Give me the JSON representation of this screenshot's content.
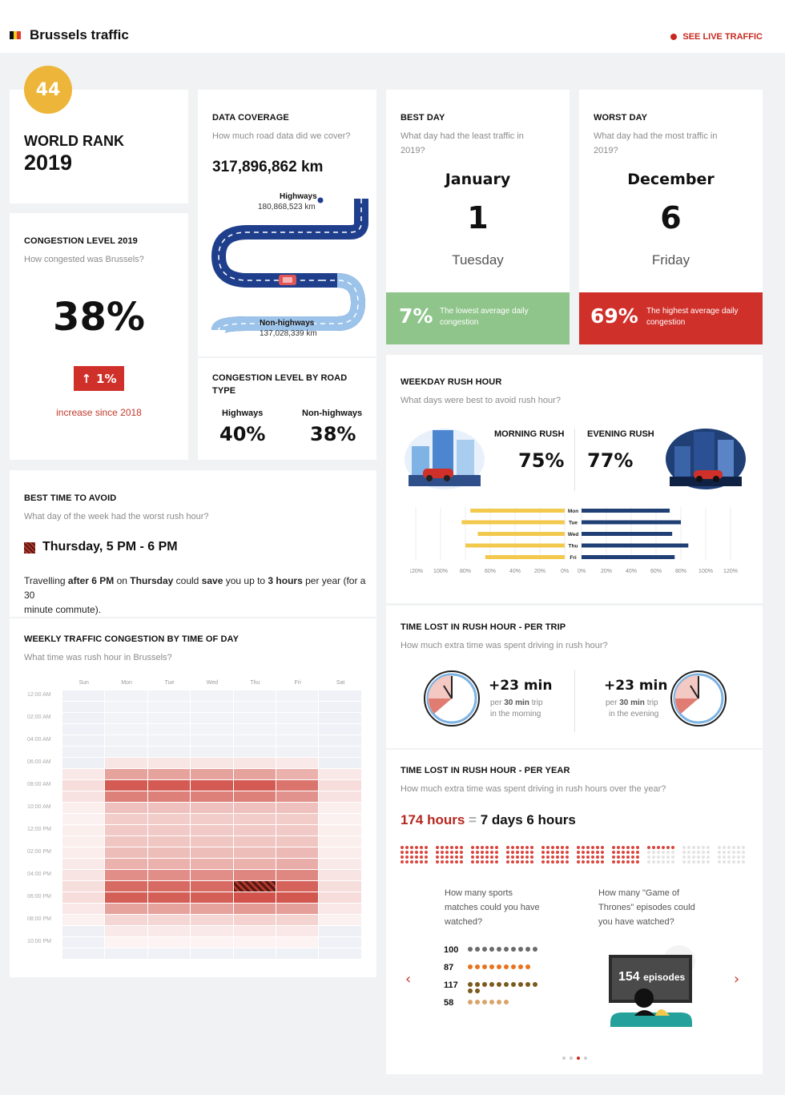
{
  "header": {
    "title": "Brussels traffic",
    "live_link": "SEE LIVE TRAFFIC",
    "flag_colors": [
      "#111111",
      "#f4cc1b",
      "#e23a2d"
    ]
  },
  "world_rank": {
    "rank": "44",
    "label": "WORLD RANK",
    "year": "2019"
  },
  "congestion": {
    "title": "CONGESTION LEVEL 2019",
    "question": "How congested was Brussels?",
    "value": "38%",
    "change": "1%",
    "change_text": "increase since 2018"
  },
  "data_coverage": {
    "title": "DATA COVERAGE",
    "question": "How much road data did we cover?",
    "total": "317,896,862 km",
    "highways_label": "Highways",
    "highways_km": "180,868,523 km",
    "nonhighways_label": "Non-highways",
    "nonhighways_km": "137,028,339 km"
  },
  "road_type": {
    "title_line1": "CONGESTION LEVEL BY ROAD",
    "title_line2": "TYPE",
    "highways_label": "Highways",
    "highways_value": "40%",
    "nonhighways_label": "Non-highways",
    "nonhighways_value": "38%"
  },
  "best_day": {
    "title": "BEST DAY",
    "question_line1": "What day had the least traffic in",
    "question_line2": "2019?",
    "month": "January",
    "day": "1",
    "weekday": "Tuesday",
    "pct": "7%",
    "note_line1": "The lowest average daily",
    "note_line2": "congestion",
    "color": "#8fc58b"
  },
  "worst_day": {
    "title": "WORST DAY",
    "question_line1": "What day had the most traffic in",
    "question_line2": "2019?",
    "month": "December",
    "day": "6",
    "weekday": "Friday",
    "pct": "69%",
    "note_line1": "The highest average daily",
    "note_line2": "congestion",
    "color": "#d0302a"
  },
  "best_time": {
    "title": "BEST TIME TO AVOID",
    "question": "What day of the week had the worst rush hour?",
    "slot": "Thursday, 5 PM - 6 PM",
    "line1_a": "Travelling ",
    "line1_b": "after 6 PM",
    "line1_c": " on ",
    "line1_d": "Thursday",
    "line1_e": " could ",
    "line1_f": "save",
    "line1_g": " you up to ",
    "line1_h": "3 hours",
    "line1_i": " per year (for a 30",
    "line2": "minute commute)."
  },
  "weekday_rush": {
    "title": "WEEKDAY RUSH HOUR",
    "question": "What days were best to avoid rush hour?",
    "morning_label": "MORNING RUSH",
    "morning_value": "75%",
    "evening_label": "EVENING RUSH",
    "evening_value": "77%"
  },
  "chart_data": {
    "type": "bar",
    "categories": [
      "Mon",
      "Tue",
      "Wed",
      "Thu",
      "Fri"
    ],
    "series": [
      {
        "name": "MORNING RUSH",
        "values": [
          76,
          83,
          70,
          80,
          64
        ],
        "color": "#f2c94c"
      },
      {
        "name": "EVENING RUSH",
        "values": [
          71,
          80,
          73,
          86,
          75
        ],
        "color": "#1f3f75"
      }
    ],
    "left_ticks": [
      "120%",
      "100%",
      "80%",
      "60%",
      "40%",
      "20%",
      "0%"
    ],
    "right_ticks": [
      "0%",
      "20%",
      "40%",
      "60%",
      "80%",
      "100%",
      "120%"
    ],
    "xlim": [
      0,
      120
    ]
  },
  "trip": {
    "title": "TIME LOST IN RUSH HOUR - PER TRIP",
    "question": "How much extra time was spent driving in rush hour?",
    "morning_value": "+23 min",
    "morning_per_a": "per ",
    "morning_per_b": "30 min",
    "morning_per_c": " trip",
    "morning_when": "in the morning",
    "evening_value": "+23 min",
    "evening_per_a": "per ",
    "evening_per_b": "30 min",
    "evening_per_c": " trip",
    "evening_when": "in the evening"
  },
  "year": {
    "title": "TIME LOST IN RUSH HOUR - PER YEAR",
    "question": "How much extra time was spent driving in rush hours over the year?",
    "hours": "174 hours",
    "equals": "=",
    "days": "7 days 6 hours",
    "filled_days": 7,
    "partial_hours": 6,
    "total_days": 10
  },
  "sports": {
    "question_line1": "How many sports",
    "question_line2": "matches could you have",
    "question_line3": "watched?",
    "rows": [
      {
        "count": "100",
        "icons": 10,
        "color": "#6b6b6b"
      },
      {
        "count": "87",
        "icons": 9,
        "color": "#e8731f"
      },
      {
        "count": "117",
        "icons": 12,
        "color": "#7a5a1d"
      },
      {
        "count": "58",
        "icons": 6,
        "color": "#d9a46a"
      }
    ]
  },
  "got": {
    "question_line1": "How many \"Game of",
    "question_line2": "Thrones\" episodes could",
    "question_line3": "you have watched?",
    "episodes": "154",
    "episodes_unit": "episodes"
  },
  "heatmap": {
    "title": "WEEKLY TRAFFIC CONGESTION BY TIME OF DAY",
    "question": "What time was rush hour in Brussels?",
    "days": [
      "Sun",
      "Mon",
      "Tue",
      "Wed",
      "Thu",
      "Fri",
      "Sat"
    ],
    "hour_labels": [
      "12:00 AM",
      "02:00 AM",
      "04:00 AM",
      "06:00 AM",
      "08:00 AM",
      "10:00 AM",
      "12:00 PM",
      "02:00 PM",
      "04:00 PM",
      "06:00 PM",
      "08:00 PM",
      "10:00 PM"
    ]
  }
}
